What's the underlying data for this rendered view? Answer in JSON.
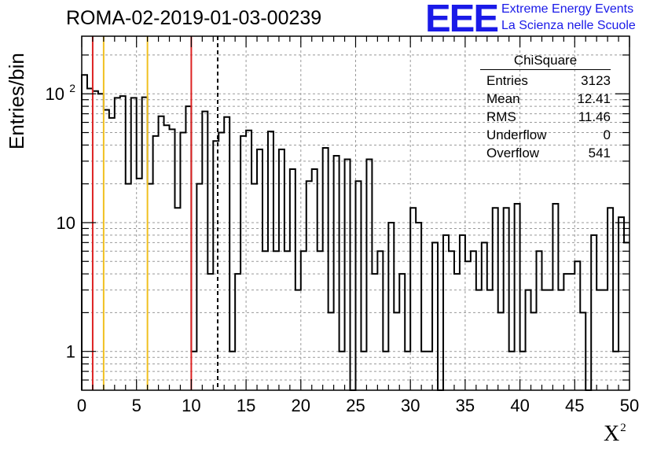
{
  "header": {
    "title": "ROMA-02-2019-01-03-00239",
    "logo_text": "EEE",
    "logo_line1": "Extreme Energy Events",
    "logo_line2": "La Scienza nelle Scuole"
  },
  "stats_box": {
    "title": "ChiSquare",
    "rows": [
      {
        "label": "Entries",
        "value": "3123"
      },
      {
        "label": "Mean",
        "value": "12.41"
      },
      {
        "label": "RMS",
        "value": "11.46"
      },
      {
        "label": "Underflow",
        "value": "0"
      },
      {
        "label": "Overflow",
        "value": "541"
      }
    ]
  },
  "chart_data": {
    "type": "histogram",
    "xlabel": "X",
    "xlabel_superscript": "2",
    "ylabel": "Entries/bin",
    "xlim": [
      0,
      50
    ],
    "ylim": [
      0.5,
      280
    ],
    "yscale": "log",
    "grid": true,
    "bin_width": 0.5,
    "x_ticks": [
      0,
      5,
      10,
      15,
      20,
      25,
      30,
      35,
      40,
      45,
      50
    ],
    "y_tick_labels": [
      {
        "value": 1,
        "base": "1",
        "exp": ""
      },
      {
        "value": 10,
        "base": "10",
        "exp": ""
      },
      {
        "value": 100,
        "base": "10",
        "exp": "2"
      }
    ],
    "bin_counts": [
      140,
      110,
      105,
      100,
      75,
      65,
      93,
      96,
      20,
      93,
      22,
      94,
      20,
      47,
      67,
      57,
      53,
      13,
      50,
      80,
      1,
      20,
      73,
      4,
      43,
      50,
      66,
      1,
      4,
      47,
      52,
      20,
      37,
      6,
      51,
      6,
      37,
      6,
      26,
      3,
      6,
      21,
      26,
      6,
      38,
      2,
      33,
      1,
      31,
      0.5,
      21,
      1,
      31,
      4,
      6,
      1,
      10,
      2,
      4,
      1,
      13,
      10,
      1,
      1,
      7,
      0.5,
      8,
      6,
      4,
      8,
      5,
      6,
      3,
      7,
      3,
      13,
      2,
      13,
      1,
      14,
      1,
      3,
      2,
      6,
      3,
      3,
      14,
      3,
      4,
      4,
      5,
      2,
      0,
      8,
      3,
      3,
      13,
      1,
      11,
      7
    ],
    "vertical_lines": [
      {
        "x": 1,
        "color": "#dd2222",
        "style": "solid"
      },
      {
        "x": 2,
        "color": "#f0c020",
        "style": "solid"
      },
      {
        "x": 6,
        "color": "#f0c020",
        "style": "solid"
      },
      {
        "x": 10,
        "color": "#dd2222",
        "style": "solid"
      },
      {
        "x": 12.41,
        "color": "#000000",
        "style": "dashed"
      }
    ]
  }
}
